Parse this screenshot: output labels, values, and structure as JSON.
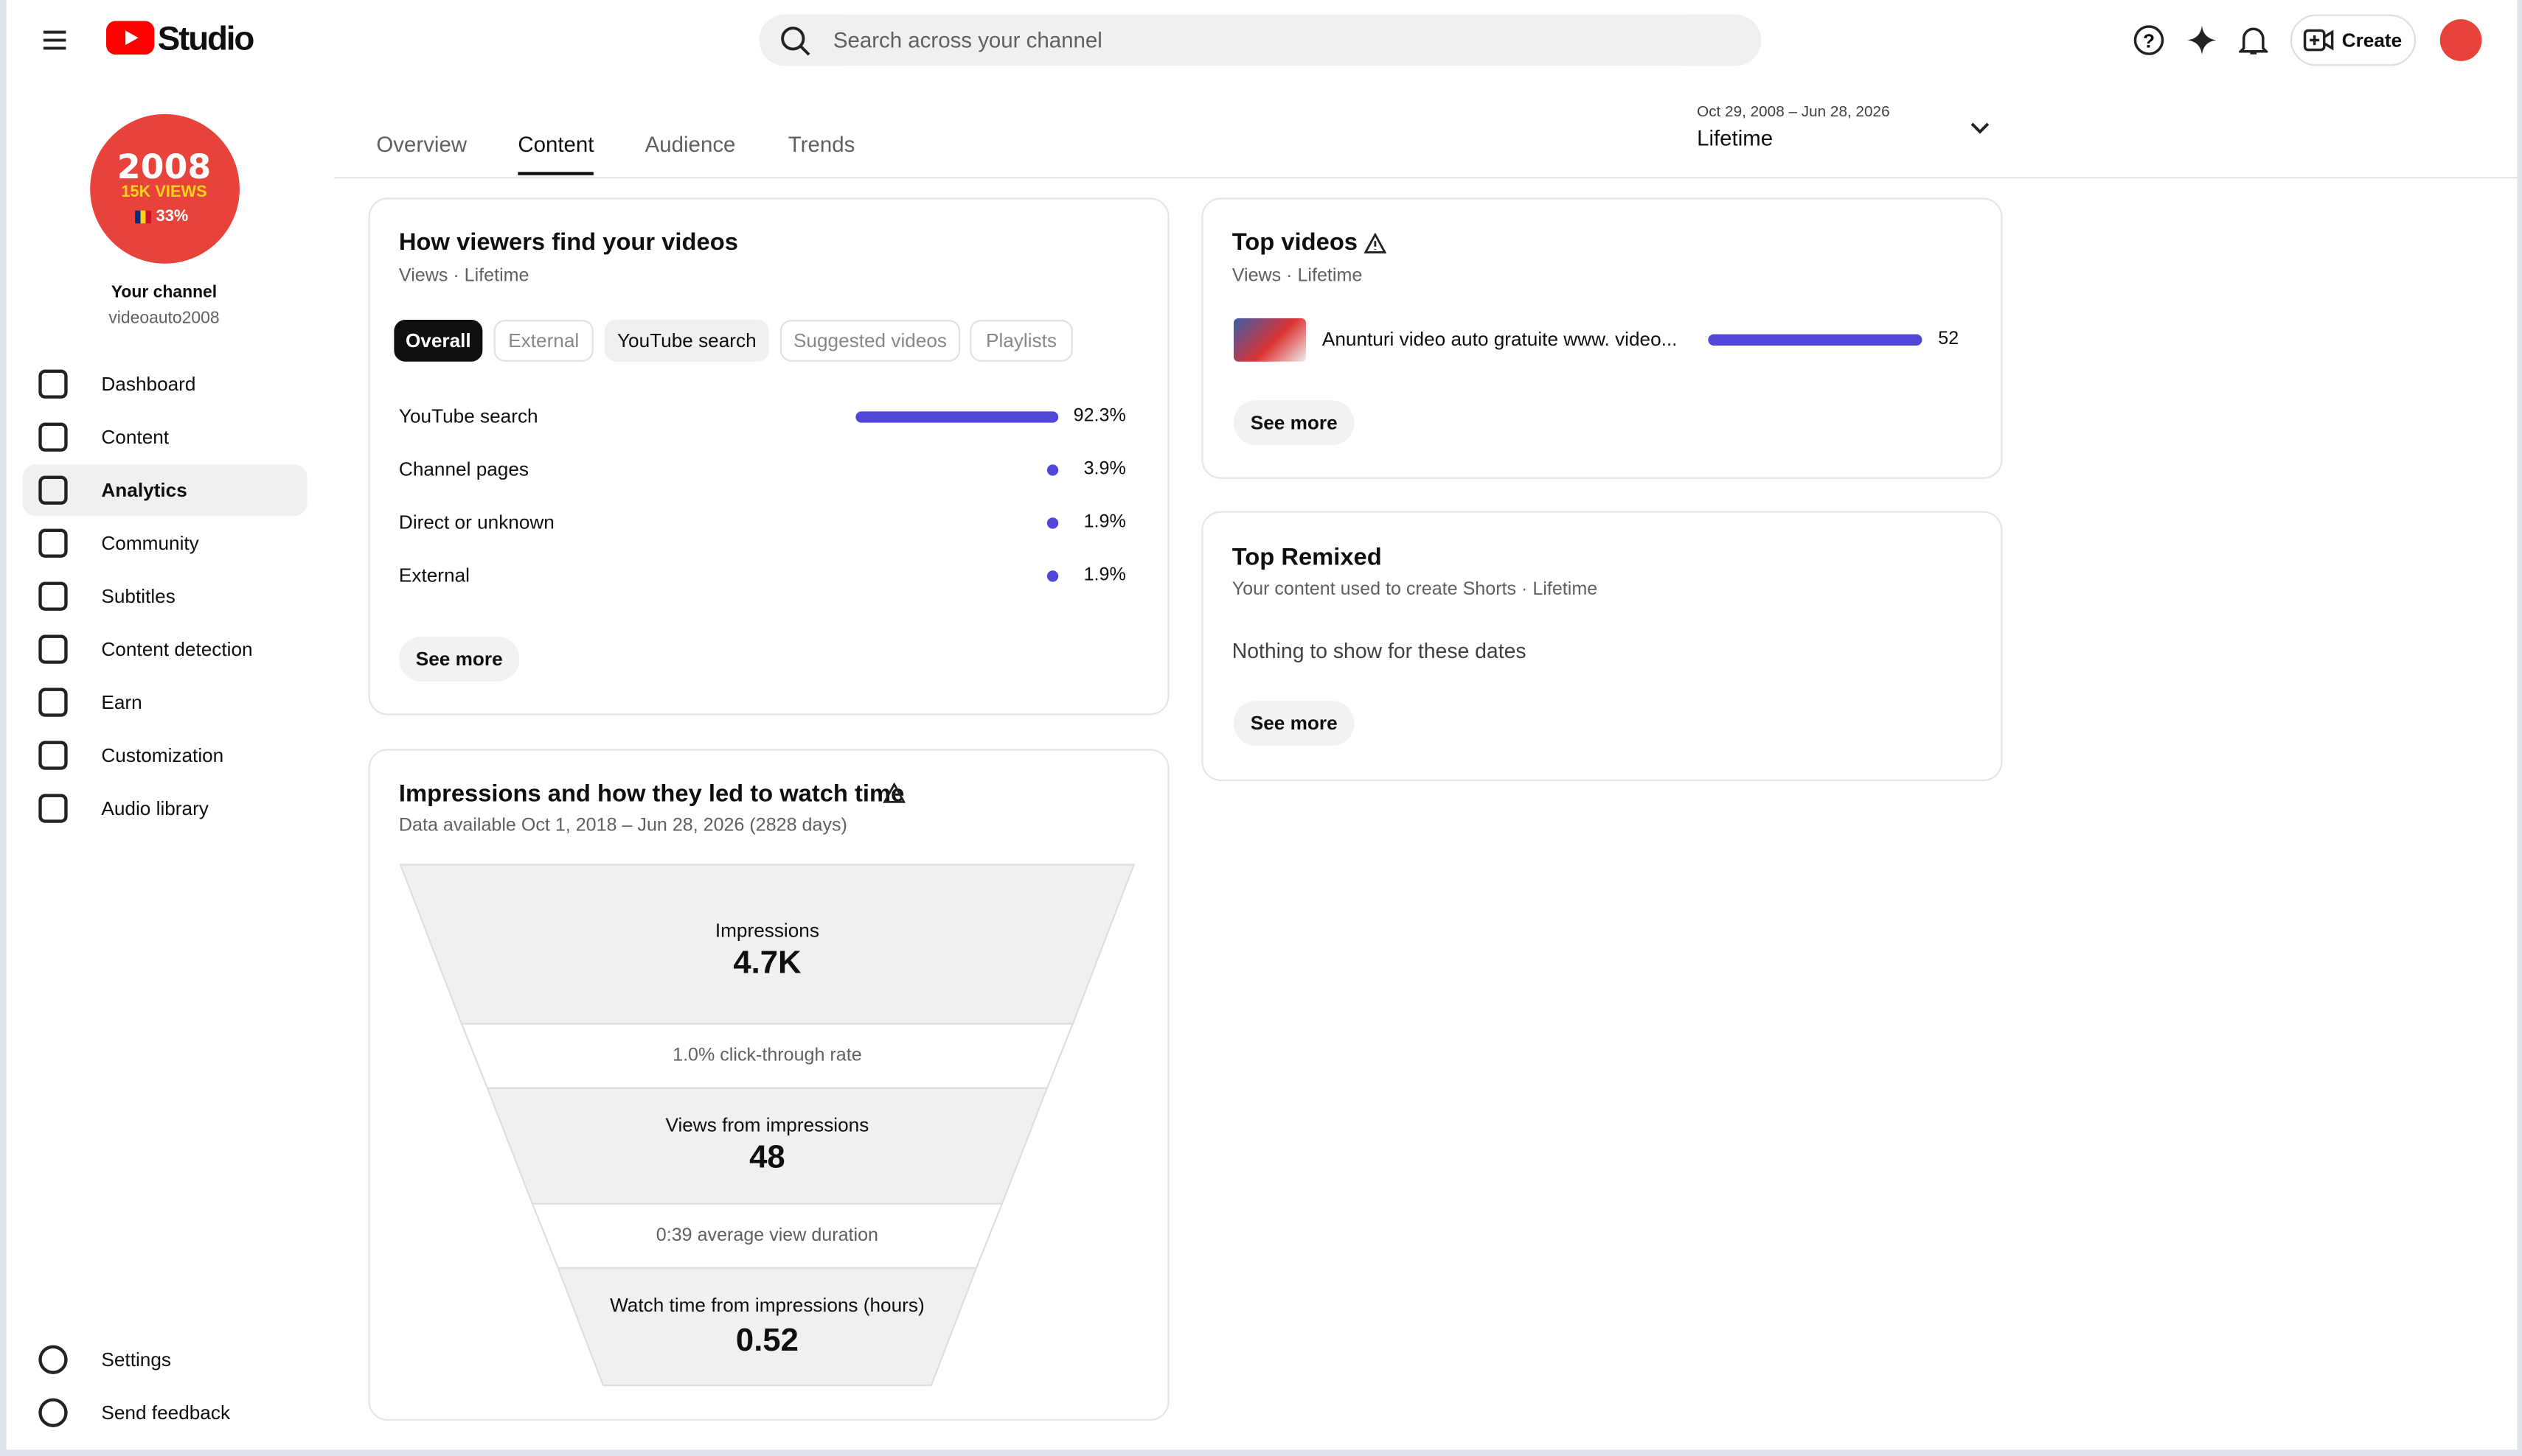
{
  "header": {
    "logo": "Studio",
    "search_placeholder": "Search across your channel",
    "create": "Create"
  },
  "sidebar": {
    "avatar": {
      "line1": "2008",
      "line2": "15K VIEWS",
      "line3": "33%"
    },
    "channel_label": "Your channel",
    "channel_name": "videoauto2008",
    "nav": [
      "Dashboard",
      "Content",
      "Analytics",
      "Community",
      "Subtitles",
      "Content detection",
      "Earn",
      "Customization",
      "Audio library"
    ],
    "selected": 2,
    "bottom": [
      "Settings",
      "Send feedback"
    ]
  },
  "tabs": {
    "items": [
      "Overview",
      "Content",
      "Audience",
      "Trends"
    ],
    "selected": 1
  },
  "date_range": {
    "range": "Oct 29, 2008 – Jun 28, 2026",
    "label": "Lifetime"
  },
  "traffic_card": {
    "title": "How viewers find your videos",
    "subtitle": "Views · Lifetime",
    "chips": [
      "Overall",
      "External",
      "YouTube search",
      "Suggested videos",
      "Playlists"
    ],
    "rows": [
      {
        "name": "YouTube search",
        "value": 92.3,
        "label": "92.3%"
      },
      {
        "name": "Channel pages",
        "value": 3.9,
        "label": "3.9%"
      },
      {
        "name": "Direct or unknown",
        "value": 1.9,
        "label": "1.9%"
      },
      {
        "name": "External",
        "value": 1.9,
        "label": "1.9%"
      }
    ],
    "button": "See more"
  },
  "funnel_card": {
    "title": "Impressions and how they led to watch time",
    "subtitle": "Data available Oct 1, 2018 – Jun 28, 2026 (2828 days)",
    "impressions_label": "Impressions",
    "impressions": "4.7K",
    "ctr": "1.0% click-through rate",
    "views_label": "Views from impressions",
    "views": "48",
    "avd": "0:39 average view duration",
    "watch_label": "Watch time from impressions (hours)",
    "watch": "0.52"
  },
  "top_videos": {
    "title": "Top videos",
    "subtitle": "Views · Lifetime",
    "videos": [
      {
        "title": "Anunturi video auto gratuite www. video...",
        "views": 52
      }
    ],
    "button": "See more"
  },
  "top_remixed": {
    "title": "Top Remixed",
    "subtitle": "Your content used to create Shorts · Lifetime",
    "empty": "Nothing to show for these dates",
    "button": "See more"
  }
}
